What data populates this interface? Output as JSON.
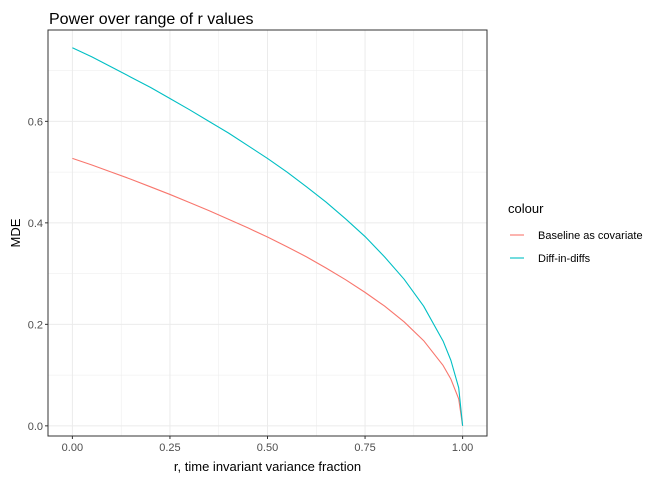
{
  "chart_data": {
    "type": "line",
    "title": "Power over range of r values",
    "xlabel": "r, time invariant variance fraction",
    "ylabel": "MDE",
    "xlim": [
      -0.0625,
      1.0625
    ],
    "ylim": [
      -0.02,
      0.78
    ],
    "x_ticks": [
      0.0,
      0.25,
      0.5,
      0.75,
      1.0
    ],
    "x_tick_labels": [
      "0.00",
      "0.25",
      "0.50",
      "0.75",
      "1.00"
    ],
    "y_ticks": [
      0.0,
      0.2,
      0.4,
      0.6
    ],
    "y_tick_labels": [
      "0.0",
      "0.2",
      "0.4",
      "0.6"
    ],
    "grid": true,
    "legend": {
      "title": "colour",
      "position": "right"
    },
    "series": [
      {
        "name": "Baseline as covariate",
        "color": "#F8766D",
        "x": [
          0.0,
          0.05,
          0.1,
          0.15,
          0.2,
          0.25,
          0.3,
          0.35,
          0.4,
          0.45,
          0.5,
          0.55,
          0.6,
          0.65,
          0.7,
          0.75,
          0.8,
          0.85,
          0.9,
          0.95,
          0.97,
          0.99,
          1.0
        ],
        "values": [
          0.527,
          0.514,
          0.5,
          0.486,
          0.471,
          0.456,
          0.44,
          0.424,
          0.407,
          0.39,
          0.372,
          0.353,
          0.333,
          0.311,
          0.288,
          0.263,
          0.236,
          0.205,
          0.168,
          0.119,
          0.092,
          0.053,
          0.0
        ]
      },
      {
        "name": "Diff-in-diffs",
        "color": "#00BFC4",
        "x": [
          0.0,
          0.05,
          0.1,
          0.15,
          0.2,
          0.25,
          0.3,
          0.35,
          0.4,
          0.45,
          0.5,
          0.55,
          0.6,
          0.65,
          0.7,
          0.75,
          0.8,
          0.85,
          0.9,
          0.95,
          0.97,
          0.99,
          1.0
        ],
        "values": [
          0.745,
          0.727,
          0.707,
          0.687,
          0.667,
          0.645,
          0.623,
          0.6,
          0.577,
          0.552,
          0.527,
          0.5,
          0.471,
          0.441,
          0.408,
          0.373,
          0.333,
          0.289,
          0.236,
          0.167,
          0.129,
          0.075,
          0.0
        ]
      }
    ]
  }
}
